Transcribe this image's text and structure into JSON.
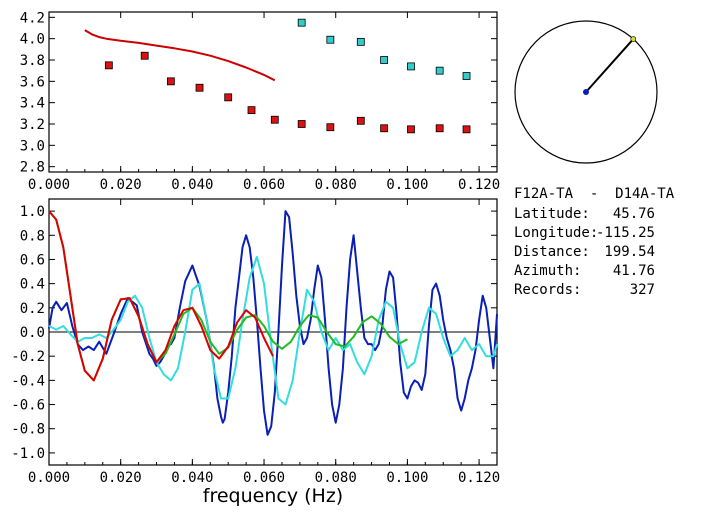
{
  "info": {
    "station_pair": "F12A-TA  -  D14A-TA",
    "rows": [
      {
        "label": "Latitude:",
        "value": "45.76"
      },
      {
        "label": "Longitude:",
        "value": "-115.25"
      },
      {
        "label": "Distance:",
        "value": "199.54"
      },
      {
        "label": "Azimuth:",
        "value": "41.76"
      },
      {
        "label": "Records:",
        "value": "327"
      }
    ]
  },
  "chart_data": [
    {
      "type": "scatter",
      "title": "",
      "xlabel": "",
      "ylabel": "",
      "xlim": [
        0.0,
        0.125
      ],
      "ylim": [
        2.75,
        4.25
      ],
      "xticks": [
        "0.000",
        "0.020",
        "0.040",
        "0.060",
        "0.080",
        "0.100",
        "0.120"
      ],
      "yticks": [
        "2.8",
        "3.0",
        "3.2",
        "3.4",
        "3.6",
        "3.8",
        "4.0",
        "4.2"
      ],
      "series": [
        {
          "color": "#cc0000",
          "kind": "line",
          "x": [
            0.01,
            0.012,
            0.014,
            0.016,
            0.018,
            0.02,
            0.025,
            0.03,
            0.035,
            0.04,
            0.045,
            0.05,
            0.055,
            0.06,
            0.063
          ],
          "y": [
            4.08,
            4.04,
            4.015,
            4.0,
            3.99,
            3.98,
            3.96,
            3.935,
            3.91,
            3.88,
            3.84,
            3.79,
            3.73,
            3.66,
            3.61
          ]
        },
        {
          "color": "#dd1111",
          "kind": "markers",
          "x": [
            0.0167,
            0.0267,
            0.034,
            0.042,
            0.05,
            0.0565,
            0.063,
            0.0705,
            0.0785,
            0.087,
            0.0935,
            0.101,
            0.109,
            0.1165
          ],
          "y": [
            3.75,
            3.84,
            3.6,
            3.54,
            3.45,
            3.33,
            3.24,
            3.2,
            3.17,
            3.23,
            3.16,
            3.15,
            3.16,
            3.15
          ]
        },
        {
          "color": "#33cccc",
          "kind": "markers",
          "x": [
            0.0705,
            0.0785,
            0.087,
            0.0935,
            0.101,
            0.109,
            0.1165
          ],
          "y": [
            4.15,
            3.99,
            3.97,
            3.8,
            3.74,
            3.7,
            3.65
          ]
        }
      ]
    },
    {
      "type": "line",
      "title": "",
      "xlabel": "frequency (Hz)",
      "ylabel": "",
      "xlim": [
        0.0,
        0.125
      ],
      "ylim": [
        -1.1,
        1.1
      ],
      "xticks": [
        "0.000",
        "0.020",
        "0.040",
        "0.060",
        "0.080",
        "0.100",
        "0.120"
      ],
      "yticks": [
        "1.0",
        "0.8",
        "0.6",
        "0.4",
        "0.2",
        "0.0",
        "-0.2",
        "-0.4",
        "-0.6",
        "-0.8",
        "-1.0"
      ],
      "zero_line": true,
      "series": [
        {
          "color": "#0a1fb5",
          "x": [
            0.0,
            0.001,
            0.002,
            0.0035,
            0.005,
            0.0065,
            0.008,
            0.0095,
            0.011,
            0.0125,
            0.014,
            0.016,
            0.018,
            0.02,
            0.022,
            0.0245,
            0.026,
            0.028,
            0.029,
            0.03,
            0.031,
            0.032,
            0.033,
            0.034,
            0.035,
            0.0365,
            0.038,
            0.04,
            0.042,
            0.044,
            0.046,
            0.047,
            0.048,
            0.0485,
            0.049,
            0.05,
            0.051,
            0.052,
            0.053,
            0.054,
            0.055,
            0.056,
            0.057,
            0.058,
            0.059,
            0.06,
            0.061,
            0.062,
            0.063,
            0.064,
            0.065,
            0.066,
            0.067,
            0.068,
            0.069,
            0.07,
            0.071,
            0.072,
            0.073,
            0.074,
            0.075,
            0.076,
            0.077,
            0.078,
            0.079,
            0.08,
            0.081,
            0.082,
            0.083,
            0.084,
            0.085,
            0.086,
            0.087,
            0.088,
            0.089,
            0.09,
            0.091,
            0.092,
            0.093,
            0.094,
            0.095,
            0.096,
            0.097,
            0.098,
            0.099,
            0.1,
            0.101,
            0.102,
            0.103,
            0.104,
            0.105,
            0.106,
            0.107,
            0.108,
            0.109,
            0.11,
            0.111,
            0.112,
            0.113,
            0.114,
            0.115,
            0.116,
            0.117,
            0.118,
            0.119,
            0.12,
            0.121,
            0.122,
            0.123,
            0.124,
            0.125
          ],
          "y": [
            0.03,
            0.2,
            0.25,
            0.18,
            0.24,
            0.05,
            -0.1,
            -0.15,
            -0.12,
            -0.15,
            -0.08,
            -0.18,
            -0.02,
            0.15,
            0.28,
            0.22,
            0.0,
            -0.18,
            -0.22,
            -0.28,
            -0.25,
            -0.2,
            -0.12,
            -0.1,
            -0.05,
            0.2,
            0.42,
            0.55,
            0.38,
            0.1,
            -0.28,
            -0.55,
            -0.7,
            -0.75,
            -0.72,
            -0.5,
            -0.2,
            0.2,
            0.45,
            0.7,
            0.8,
            0.7,
            0.45,
            0.1,
            -0.3,
            -0.65,
            -0.85,
            -0.78,
            -0.5,
            0.0,
            0.55,
            1.0,
            0.95,
            0.65,
            0.3,
            0.05,
            -0.1,
            -0.05,
            0.1,
            0.35,
            0.55,
            0.45,
            0.1,
            -0.3,
            -0.6,
            -0.75,
            -0.6,
            -0.3,
            0.2,
            0.6,
            0.8,
            0.5,
            0.2,
            -0.05,
            -0.1,
            -0.1,
            -0.15,
            -0.1,
            0.05,
            0.35,
            0.5,
            0.45,
            0.15,
            -0.25,
            -0.5,
            -0.55,
            -0.45,
            -0.4,
            -0.42,
            -0.48,
            -0.35,
            0.05,
            0.35,
            0.4,
            0.3,
            0.1,
            -0.05,
            -0.15,
            -0.3,
            -0.55,
            -0.65,
            -0.55,
            -0.4,
            -0.3,
            -0.15,
            0.1,
            0.3,
            0.2,
            -0.05,
            -0.3,
            0.15
          ]
        },
        {
          "color": "#33dddd",
          "x": [
            0.0,
            0.002,
            0.004,
            0.006,
            0.008,
            0.01,
            0.012,
            0.014,
            0.016,
            0.018,
            0.02,
            0.022,
            0.024,
            0.026,
            0.028,
            0.03,
            0.032,
            0.034,
            0.036,
            0.038,
            0.04,
            0.042,
            0.044,
            0.046,
            0.048,
            0.05,
            0.052,
            0.054,
            0.056,
            0.058,
            0.06,
            0.062,
            0.064,
            0.066,
            0.068,
            0.07,
            0.072,
            0.074,
            0.076,
            0.078,
            0.08,
            0.082,
            0.084,
            0.086,
            0.088,
            0.09,
            0.092,
            0.094,
            0.096,
            0.098,
            0.1,
            0.102,
            0.104,
            0.106,
            0.108,
            0.11,
            0.112,
            0.114,
            0.116,
            0.118,
            0.12,
            0.122,
            0.124,
            0.125
          ],
          "y": [
            0.05,
            0.02,
            0.05,
            -0.02,
            -0.08,
            -0.05,
            -0.05,
            -0.02,
            -0.05,
            0.02,
            0.1,
            0.25,
            0.3,
            0.2,
            -0.05,
            -0.25,
            -0.35,
            -0.4,
            -0.3,
            0.0,
            0.35,
            0.4,
            0.1,
            -0.3,
            -0.55,
            -0.55,
            -0.3,
            0.1,
            0.45,
            0.62,
            0.4,
            -0.1,
            -0.55,
            -0.6,
            -0.4,
            0.0,
            0.35,
            0.25,
            0.0,
            -0.15,
            -0.05,
            -0.15,
            -0.1,
            -0.25,
            -0.35,
            -0.2,
            0.1,
            0.25,
            0.2,
            -0.1,
            -0.3,
            -0.25,
            0.0,
            0.2,
            0.15,
            -0.05,
            -0.2,
            -0.15,
            -0.05,
            -0.15,
            -0.1,
            -0.2,
            -0.2,
            -0.1
          ]
        },
        {
          "color": "#22bb22",
          "x": [
            0.0,
            0.002,
            0.004,
            0.006,
            0.008,
            0.01,
            0.0125,
            0.015,
            0.0175,
            0.02,
            0.0225,
            0.025,
            0.0275,
            0.03,
            0.0325,
            0.035,
            0.0375,
            0.04,
            0.0425,
            0.045,
            0.0475,
            0.05,
            0.0525,
            0.055,
            0.0575,
            0.06,
            0.0625,
            0.065,
            0.0675,
            0.07,
            0.0725,
            0.075,
            0.0775,
            0.08,
            0.0825,
            0.085,
            0.0875,
            0.09,
            0.0925,
            0.095,
            0.0975,
            0.1
          ],
          "y": [
            1.0,
            0.93,
            0.7,
            0.3,
            -0.1,
            -0.32,
            -0.4,
            -0.22,
            0.1,
            0.27,
            0.28,
            0.13,
            -0.1,
            -0.25,
            -0.18,
            -0.02,
            0.15,
            0.2,
            0.1,
            -0.08,
            -0.18,
            -0.13,
            0.02,
            0.12,
            0.14,
            0.05,
            -0.08,
            -0.14,
            -0.08,
            0.05,
            0.14,
            0.12,
            0.0,
            -0.1,
            -0.12,
            -0.04,
            0.08,
            0.13,
            0.07,
            -0.04,
            -0.1,
            -0.06
          ]
        },
        {
          "color": "#dd0000",
          "x": [
            0.0,
            0.002,
            0.004,
            0.006,
            0.008,
            0.01,
            0.0125,
            0.015,
            0.0175,
            0.02,
            0.0225,
            0.025,
            0.0275,
            0.03,
            0.0325,
            0.035,
            0.0375,
            0.04,
            0.0425,
            0.045,
            0.0475,
            0.05,
            0.0525,
            0.055,
            0.0575,
            0.06,
            0.0625
          ],
          "y": [
            1.0,
            0.93,
            0.7,
            0.3,
            -0.1,
            -0.32,
            -0.4,
            -0.22,
            0.1,
            0.27,
            0.28,
            0.13,
            -0.1,
            -0.25,
            -0.15,
            0.05,
            0.18,
            0.2,
            0.05,
            -0.15,
            -0.22,
            -0.12,
            0.08,
            0.18,
            0.12,
            -0.05,
            -0.2
          ]
        }
      ]
    }
  ],
  "azimuth_dial": {
    "azimuth_deg": 41.76,
    "line_color": "#000000",
    "origin_color": "#0a1fb5",
    "tip_color": "#dddd22"
  }
}
